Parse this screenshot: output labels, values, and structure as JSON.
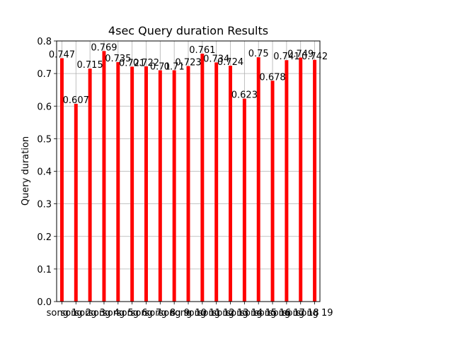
{
  "chart_data": {
    "type": "bar",
    "title": "4sec Query duration Results",
    "xlabel": "",
    "ylabel": "Query duration",
    "ylim": [
      0,
      0.8
    ],
    "yticks": [
      "0.0",
      "0.1",
      "0.2",
      "0.3",
      "0.4",
      "0.5",
      "0.6",
      "0.7",
      "0.8"
    ],
    "grid": true,
    "bar_color": "#ff0000",
    "categories": [
      "song 1",
      "song 2",
      "song 3",
      "song 4",
      "song 5",
      "song 6",
      "song 7",
      "song 8",
      "song 9",
      "song 10",
      "song 11",
      "song 12",
      "song 13",
      "song 14",
      "song 15",
      "song 16",
      "song 17",
      "song 18",
      "song 19"
    ],
    "values": [
      0.747,
      0.607,
      0.715,
      0.769,
      0.735,
      0.721,
      0.722,
      0.71,
      0.71,
      0.723,
      0.761,
      0.734,
      0.724,
      0.623,
      0.75,
      0.678,
      0.741,
      0.749,
      0.742
    ],
    "data_labels": [
      "0.747",
      "0.607",
      "0.715",
      "0.769",
      "0.735",
      "0.721",
      "0.722",
      "0.71",
      "0.71",
      "0.723",
      "0.761",
      "0.734",
      "0.724",
      "0.623",
      "0.75",
      "0.678",
      "0.741",
      "0.749",
      "0.742"
    ]
  }
}
